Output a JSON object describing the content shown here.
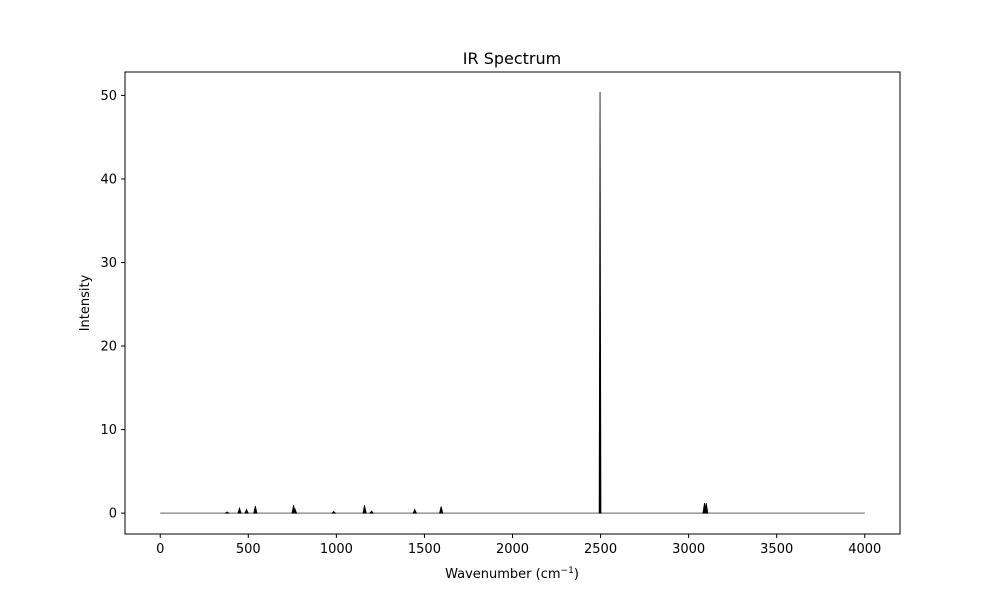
{
  "chart_data": {
    "type": "line",
    "title": "IR Spectrum",
    "xlabel": "Wavenumber (cm",
    "xlabel_sup": "−1",
    "xlabel_suffix": ")",
    "ylabel": "Intensity",
    "xlim": [
      -200,
      4200
    ],
    "ylim": [
      -2.5,
      52.8
    ],
    "xticks": [
      0,
      500,
      1000,
      1500,
      2000,
      2500,
      3000,
      3500,
      4000
    ],
    "yticks": [
      0,
      10,
      20,
      30,
      40,
      50
    ],
    "grid": false,
    "legend": "none",
    "line_color": "#000000",
    "baseline_color": "#808080",
    "x_range": [
      0,
      4000
    ],
    "peaks": [
      {
        "x": 380,
        "y": 0.15
      },
      {
        "x": 450,
        "y": 0.6
      },
      {
        "x": 490,
        "y": 0.45
      },
      {
        "x": 540,
        "y": 0.85
      },
      {
        "x": 757,
        "y": 0.95
      },
      {
        "x": 765,
        "y": 0.5
      },
      {
        "x": 985,
        "y": 0.2
      },
      {
        "x": 1160,
        "y": 0.95
      },
      {
        "x": 1200,
        "y": 0.25
      },
      {
        "x": 1445,
        "y": 0.45
      },
      {
        "x": 1595,
        "y": 0.8
      },
      {
        "x": 2497,
        "y": 50.4
      },
      {
        "x": 3090,
        "y": 1.2
      },
      {
        "x": 3100,
        "y": 1.2
      }
    ]
  }
}
